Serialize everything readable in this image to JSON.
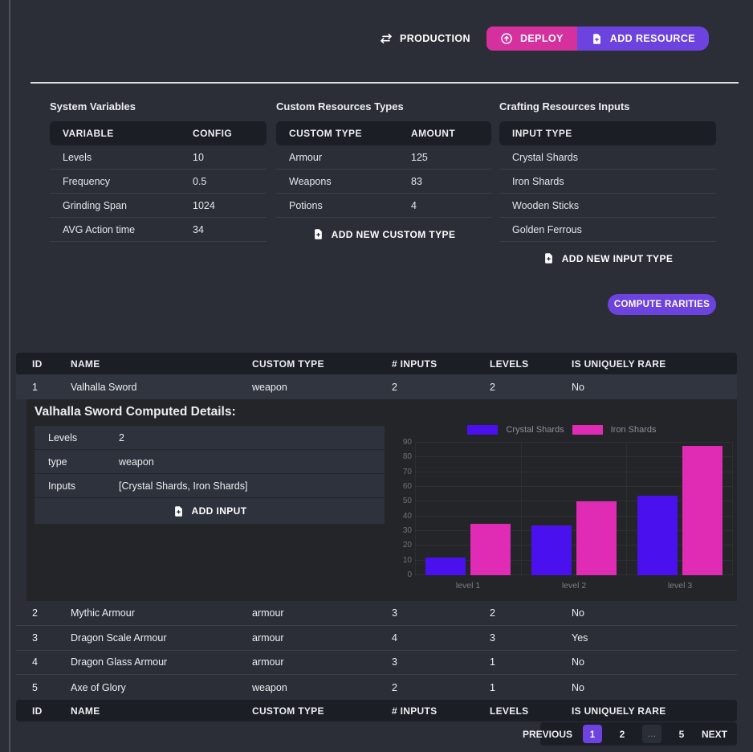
{
  "toolbar": {
    "production_label": "PRODUCTION",
    "deploy_label": "DEPLOY",
    "add_resource_label": "ADD RESOURCE",
    "icons": {
      "production": "swap-arrows-icon",
      "deploy": "upload-circle-icon",
      "add_resource": "file-plus-icon"
    }
  },
  "colors": {
    "accent_purple": "#6c43df",
    "accent_pink": "#d5309e",
    "bar_crystal": "#4b10ee",
    "bar_iron": "#e02cb4",
    "page_background": "#2b2e37",
    "header_background": "#1b1e24"
  },
  "panels": {
    "system_variables": {
      "title": "System Variables",
      "columns": [
        "VARIABLE",
        "CONFIG"
      ],
      "rows": [
        [
          "Levels",
          "10"
        ],
        [
          "Frequency",
          "0.5"
        ],
        [
          "Grinding Span",
          "1024"
        ],
        [
          "AVG Action time",
          "34"
        ]
      ]
    },
    "custom_resources": {
      "title": "Custom Resources Types",
      "columns": [
        "CUSTOM TYPE",
        "AMOUNT"
      ],
      "rows": [
        [
          "Armour",
          "125"
        ],
        [
          "Weapons",
          "83"
        ],
        [
          "Potions",
          "4"
        ]
      ],
      "add_label": "ADD NEW CUSTOM TYPE"
    },
    "crafting_inputs": {
      "title": "Crafting Resources Inputs",
      "columns": [
        "INPUT TYPE"
      ],
      "rows": [
        "Crystal Shards",
        "Iron Shards",
        "Wooden Sticks",
        "Golden Ferrous"
      ],
      "add_label": "ADD NEW INPUT TYPE"
    }
  },
  "compute_button_label": "COMPUTE RARITIES",
  "resources_table": {
    "columns": [
      "ID",
      "NAME",
      "CUSTOM TYPE",
      "# INPUTS",
      "LEVELS",
      "IS UNIQUELY RARE"
    ],
    "rows": [
      [
        "1",
        "Valhalla Sword",
        "weapon",
        "2",
        "2",
        "No"
      ],
      [
        "2",
        "Mythic Armour",
        "armour",
        "3",
        "2",
        "No"
      ],
      [
        "3",
        "Dragon Scale Armour",
        "armour",
        "4",
        "3",
        "Yes"
      ],
      [
        "4",
        "Dragon Glass Armour",
        "armour",
        "3",
        "1",
        "No"
      ],
      [
        "5",
        "Axe of Glory",
        "weapon",
        "2",
        "1",
        "No"
      ]
    ]
  },
  "details": {
    "title": "Valhalla Sword Computed Details:",
    "rows": [
      [
        "Levels",
        "2"
      ],
      [
        "type",
        "weapon"
      ],
      [
        "Inputs",
        "[Crystal Shards, Iron Shards]"
      ]
    ],
    "add_label": "ADD INPUT"
  },
  "chart_data": {
    "type": "bar",
    "title": "",
    "categories": [
      "level 1",
      "level 2",
      "level 3"
    ],
    "series": [
      {
        "name": "Crystal Shards",
        "color": "#4b10ee",
        "values": [
          12,
          34,
          54
        ]
      },
      {
        "name": "Iron Shards",
        "color": "#e02cb4",
        "values": [
          35,
          50,
          88
        ]
      }
    ],
    "xlabel": "",
    "ylabel": "",
    "ylim": [
      0,
      90
    ],
    "yticks": [
      0,
      10,
      20,
      30,
      40,
      50,
      60,
      70,
      80,
      90
    ],
    "legend_position": "top",
    "grid": true
  },
  "pagination": {
    "previous": "PREVIOUS",
    "pages": [
      "1",
      "2",
      "…",
      "5"
    ],
    "active": "1",
    "next": "NEXT"
  }
}
